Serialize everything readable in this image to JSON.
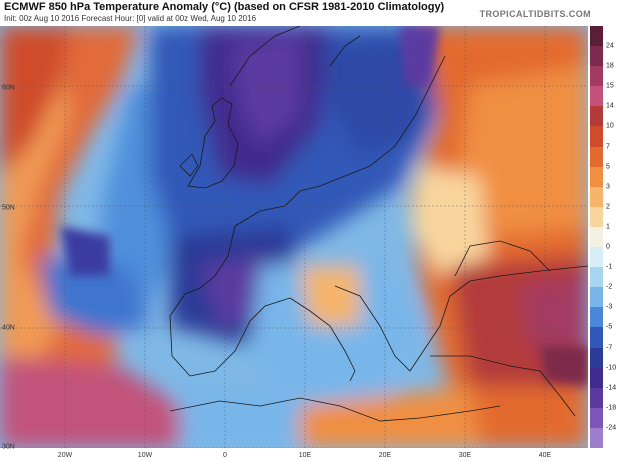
{
  "header": {
    "title": "ECMWF 850 hPa Temperature Anomaly (°C) (based on CFSR 1981-2010 Climatology)",
    "subtitle": "Init: 00z Aug 10 2016   Forecast Hour: [0]   valid at 00z Wed, Aug 10 2016",
    "brand": "TROPICALTIDBITS.COM"
  },
  "latitude_labels": [
    "60N",
    "50N",
    "40N",
    "30N"
  ],
  "longitude_labels": [
    "20W",
    "10W",
    "0",
    "10E",
    "20E",
    "30E",
    "40E"
  ],
  "colorbar": {
    "labels": [
      "24",
      "18",
      "15",
      "14",
      "10",
      "7",
      "5",
      "3",
      "2",
      "1",
      "0",
      "-1",
      "-2",
      "-3",
      "-5",
      "-7",
      "-10",
      "-14",
      "-18",
      "-24"
    ],
    "colors": [
      "#5a1e36",
      "#7d2a4c",
      "#a33a62",
      "#c2527a",
      "#b23a3a",
      "#cf4b2c",
      "#e36a2e",
      "#f08f42",
      "#f6b56a",
      "#f9d59e",
      "#f4f0e2",
      "#d9edf6",
      "#a8d6f0",
      "#78b6ea",
      "#4c87d8",
      "#3158b8",
      "#2b3b96",
      "#3f2c8e",
      "#5b3aa0",
      "#7b56b8",
      "#9d7dcc"
    ]
  }
}
